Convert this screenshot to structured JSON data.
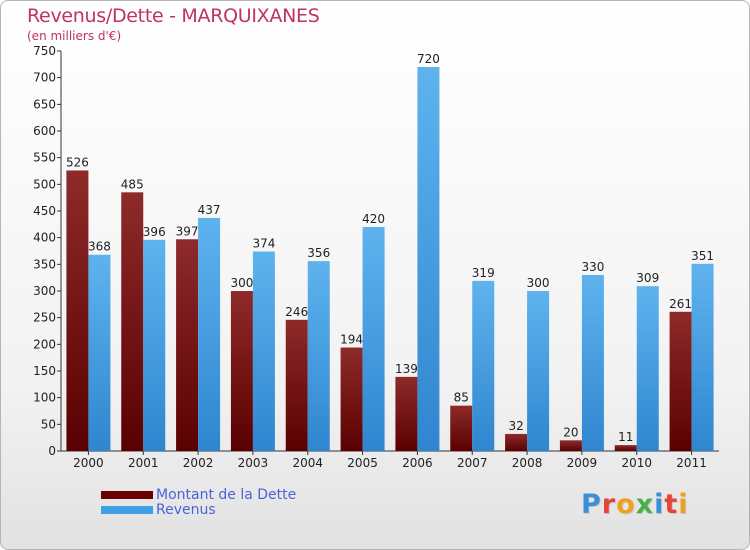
{
  "header": {
    "title": "Revenus/Dette - MARQUIXANES",
    "subtitle": "(en milliers d'€)"
  },
  "chart_data": {
    "type": "bar",
    "title": "Revenus/Dette - MARQUIXANES",
    "subtitle": "(en milliers d'€)",
    "xlabel": "",
    "ylabel": "",
    "ylim": [
      0,
      750
    ],
    "yticks": [
      0,
      50,
      100,
      150,
      200,
      250,
      300,
      350,
      400,
      450,
      500,
      550,
      600,
      650,
      700,
      750
    ],
    "grid": false,
    "legend_position": "bottom-left",
    "categories": [
      "2000",
      "2001",
      "2002",
      "2003",
      "2004",
      "2005",
      "2006",
      "2007",
      "2008",
      "2009",
      "2010",
      "2011"
    ],
    "series": [
      {
        "name": "Montant de la Dette",
        "color": "#8b1a1a",
        "values": [
          526,
          485,
          397,
          300,
          246,
          194,
          139,
          85,
          32,
          20,
          11,
          261
        ]
      },
      {
        "name": "Revenus",
        "color": "#4aa6e8",
        "values": [
          368,
          396,
          437,
          374,
          356,
          420,
          720,
          319,
          300,
          330,
          309,
          351
        ]
      }
    ]
  },
  "legend": {
    "items": [
      {
        "label": "Montant de la Dette",
        "color": "#6b0000"
      },
      {
        "label": "Revenus",
        "color": "#3f9fe4"
      }
    ]
  },
  "logo": {
    "letters": [
      {
        "char": "P",
        "color": "#3b8fd6"
      },
      {
        "char": "r",
        "color": "#e8433a"
      },
      {
        "char": "o",
        "color": "#f0a020"
      },
      {
        "char": "x",
        "color": "#49b049"
      },
      {
        "char": "i",
        "color": "#3b8fd6"
      },
      {
        "char": "t",
        "color": "#e8433a"
      },
      {
        "char": "i",
        "color": "#f0a020"
      }
    ]
  }
}
